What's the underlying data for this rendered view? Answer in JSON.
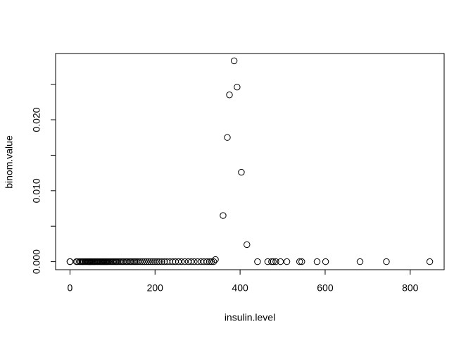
{
  "chart_data": {
    "type": "scatter",
    "x_label": "insulin.level",
    "y_label": "binom.value",
    "x": [
      0,
      0,
      15,
      18,
      22,
      25,
      28,
      30,
      32,
      35,
      37,
      40,
      42,
      44,
      46,
      48,
      50,
      52,
      54,
      56,
      58,
      60,
      63,
      65,
      67,
      70,
      72,
      74,
      76,
      78,
      80,
      82,
      84,
      86,
      88,
      90,
      93,
      96,
      99,
      102,
      105,
      108,
      110,
      113,
      116,
      120,
      123,
      126,
      130,
      133,
      136,
      140,
      143,
      146,
      150,
      153,
      156,
      160,
      165,
      170,
      175,
      180,
      185,
      190,
      195,
      200,
      205,
      210,
      216,
      222,
      228,
      235,
      242,
      248,
      255,
      262,
      270,
      278,
      285,
      292,
      300,
      308,
      315,
      322,
      328,
      333,
      338,
      342,
      360,
      370,
      375,
      386,
      393,
      403,
      416,
      441,
      465,
      474,
      478,
      484,
      495,
      510,
      540,
      545,
      581,
      601,
      682,
      744,
      846
    ],
    "values": [
      0,
      0,
      0,
      0,
      0,
      0,
      0,
      0,
      0,
      0,
      0,
      0,
      0,
      0,
      0,
      0,
      0,
      0,
      0,
      0,
      0,
      0,
      0,
      0,
      0,
      0,
      0,
      0,
      0,
      0,
      0,
      0,
      0,
      0,
      0,
      0,
      0,
      0,
      0,
      0,
      0,
      0,
      0,
      0,
      0,
      0,
      0,
      0,
      0,
      0,
      0,
      0,
      0,
      0,
      0,
      0,
      0,
      0,
      0,
      0,
      0,
      0,
      0,
      0,
      0,
      0,
      0,
      0,
      0,
      0,
      0,
      0,
      0,
      0,
      0,
      0,
      0,
      0,
      0,
      0,
      0,
      0,
      0,
      0,
      0,
      0,
      0,
      0.0003,
      0.0065,
      0.0175,
      0.0235,
      0.0283,
      0.0246,
      0.0126,
      0.0024,
      0,
      0,
      0,
      0,
      0,
      0,
      0,
      0,
      0,
      0,
      0,
      0,
      0,
      0
    ],
    "color": "#000000",
    "xlim": [
      -33.8,
      879.8
    ],
    "xticks": [
      0,
      200,
      400,
      600,
      800
    ],
    "ylim": [
      -0.00113,
      0.02933
    ],
    "yticks": [
      {
        "value": 0,
        "label": "0.000"
      },
      {
        "value": 0.005,
        "label": null
      },
      {
        "value": 0.01,
        "label": "0.010"
      },
      {
        "value": 0.015,
        "label": null
      },
      {
        "value": 0.02,
        "label": "0.020"
      },
      {
        "value": 0.025,
        "label": null
      }
    ],
    "grid": false
  }
}
